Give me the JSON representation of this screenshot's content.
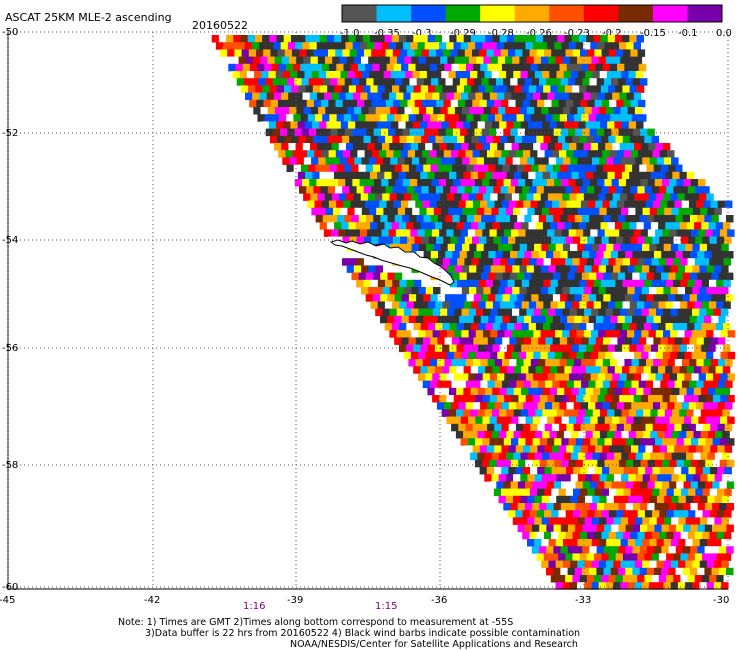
{
  "title": "ASCAT 25KM MLE-2 ascending",
  "date": "20160522",
  "legend": {
    "labels": [
      "-1.0",
      "-0.35",
      "-0.3",
      "-0.29",
      "-0.28",
      "-0.26",
      "-0.23",
      "-0.2",
      "-0.15",
      "-0.1",
      "0.0"
    ],
    "colors": [
      "#555555",
      "#00bfff",
      "#0050ff",
      "#00aa00",
      "#ffff00",
      "#ffaa00",
      "#ff5000",
      "#ff0000",
      "#7a2a00",
      "#ff00ff",
      "#7700aa"
    ]
  },
  "axes": {
    "lat_labels": [
      "-50",
      "-52",
      "-54",
      "-56",
      "-58",
      "-60"
    ],
    "lon_labels": [
      "-45",
      "-42",
      "-39",
      "-36",
      "-33",
      "-30"
    ]
  },
  "pass_times": [
    "1:16",
    "1:15"
  ],
  "notes": {
    "line1": "Note: 1) Times are GMT 2)Times along bottom correspond to measurement at -55S",
    "line2": "3)Data buffer is 22 hrs from 20160522 4) Black wind barbs indicate possible contamination",
    "line3": "NOAA/NESDIS/Center for Satellite Applications and Research"
  }
}
